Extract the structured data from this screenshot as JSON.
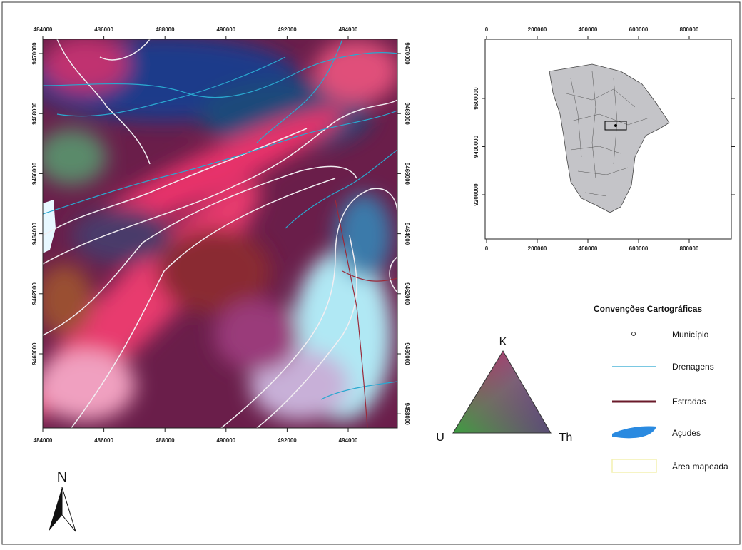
{
  "map": {
    "main_xticks": [
      484000,
      486000,
      488000,
      490000,
      492000,
      494000
    ],
    "main_yticks": [
      9470000,
      9468000,
      9466000,
      9464000,
      9462000,
      9460000
    ],
    "main_yticks_right": [
      9470000,
      9468000,
      9466000,
      9464000,
      9462000,
      9460000,
      9458000
    ],
    "inset_xticks": [
      0,
      200000,
      400000,
      600000,
      800000
    ],
    "inset_yticks": [
      9600000,
      9400000,
      9200000
    ],
    "legend": {
      "title": "Convenções Cartográficas",
      "items": [
        "Município",
        "Drenagens",
        "Estradas",
        "Açudes",
        "Área mapeada"
      ]
    },
    "ternary": {
      "top": "K",
      "left": "U",
      "right": "Th"
    },
    "north": "N"
  }
}
